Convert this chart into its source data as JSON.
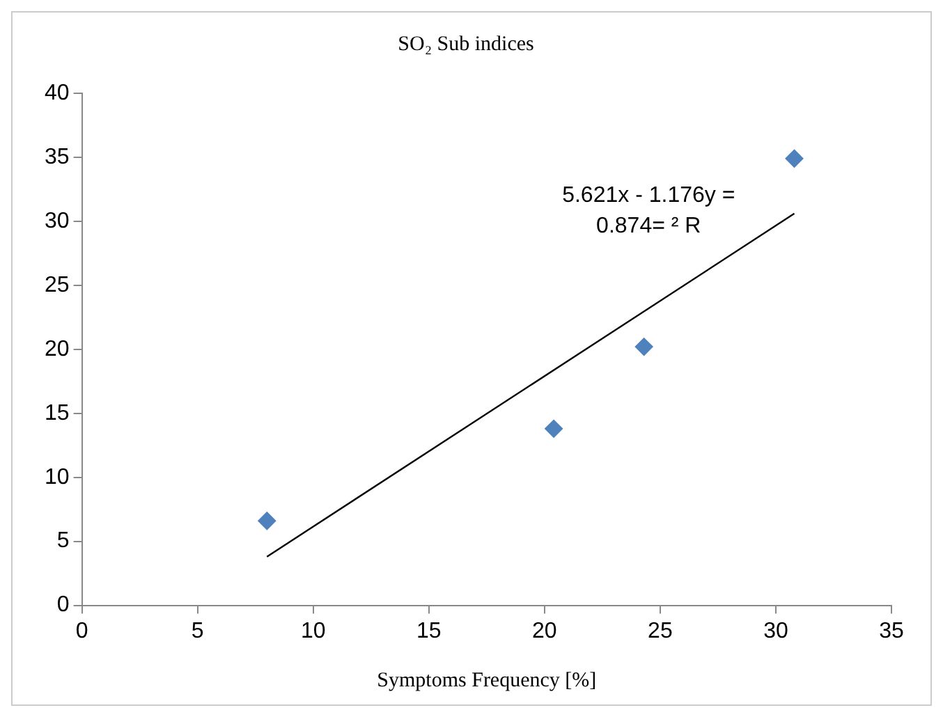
{
  "chart_data": {
    "type": "scatter",
    "title": "SO₂ Sub indices",
    "xlabel": "Symptoms Frequency [%]",
    "series": [
      {
        "color": "#4f81bd",
        "x": [
          8,
          20.4,
          24.3,
          30.8
        ],
        "values": [
          6.6,
          13.8,
          20.2,
          34.9
        ],
        "marker": "diamond"
      },
      {
        "type": "line",
        "color": "#000000",
        "x": [
          8,
          30.8
        ],
        "values": [
          3.8,
          30.6
        ],
        "marker": "none",
        "line_style": "solid"
      }
    ],
    "xlim": [
      0,
      35
    ],
    "xticks": [
      0,
      5,
      10,
      15,
      20,
      25,
      30,
      35
    ],
    "ylim": [
      0,
      40
    ],
    "yticks": [
      0,
      5,
      10,
      15,
      20,
      25,
      30,
      35,
      40
    ],
    "annotations": [
      "5.621x - 1.176y =",
      "0.874= ² R"
    ],
    "grid": false,
    "legend": false
  }
}
